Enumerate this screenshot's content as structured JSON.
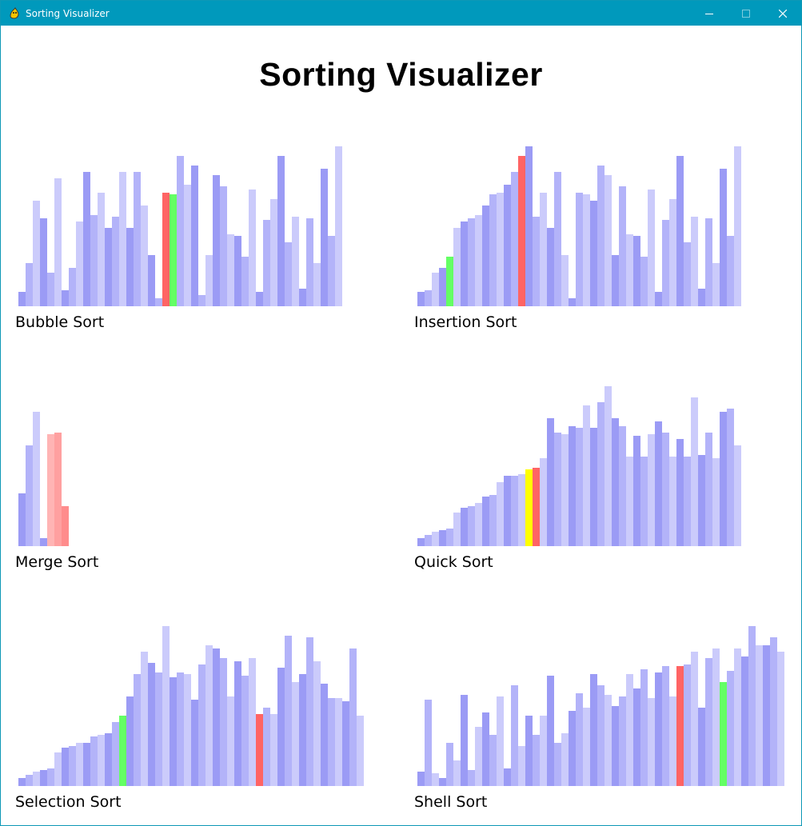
{
  "window": {
    "title": "Sorting Visualizer",
    "controls": [
      "minimize",
      "maximize",
      "close"
    ],
    "titlebar_color": "#0099bc"
  },
  "page": {
    "title": "Sorting Visualizer"
  },
  "colors": {
    "shades": [
      "#9b9bf5",
      "#b3b3f9",
      "#cbcbfb"
    ],
    "compare": "#ff6464",
    "active": "#64ff64",
    "pivot": "#ffff00",
    "merge_light": "#ffb4b4",
    "merge_mid": "#ffa0a0",
    "merge_dark": "#ff8c8c"
  },
  "panels": [
    {
      "id": "bubble",
      "label": "Bubble Sort",
      "values": [
        18,
        54,
        132,
        110,
        42,
        160,
        20,
        48,
        106,
        168,
        114,
        142,
        98,
        112,
        168,
        98,
        168,
        126,
        64,
        10,
        142,
        140,
        188,
        152,
        176,
        14,
        64,
        164,
        150,
        90,
        88,
        62,
        146,
        18,
        108,
        134,
        188,
        80,
        112,
        22,
        110,
        54,
        172,
        88,
        200
      ],
      "highlights": {
        "21": "compare",
        "22": "active"
      }
    },
    {
      "id": "insertion",
      "label": "Insertion Sort",
      "values": [
        18,
        20,
        42,
        48,
        62,
        98,
        106,
        110,
        114,
        126,
        140,
        142,
        152,
        168,
        188,
        200,
        112,
        142,
        98,
        168,
        64,
        10,
        142,
        140,
        132,
        176,
        164,
        64,
        150,
        90,
        88,
        62,
        146,
        18,
        108,
        134,
        188,
        80,
        112,
        22,
        110,
        54,
        172,
        88,
        200
      ],
      "highlights": {
        "5": "active",
        "15": "compare"
      }
    },
    {
      "id": "merge",
      "label": "Merge Sort",
      "values": [
        66,
        126,
        168,
        10,
        140,
        142,
        50
      ],
      "highlights": {
        "5": "merge_light",
        "6": "merge_mid",
        "7": "merge_dark"
      }
    },
    {
      "id": "quick",
      "label": "Quick Sort",
      "values": [
        10,
        14,
        18,
        20,
        22,
        42,
        48,
        50,
        54,
        62,
        64,
        80,
        88,
        88,
        90,
        96,
        98,
        110,
        160,
        142,
        140,
        150,
        148,
        176,
        148,
        180,
        200,
        160,
        150,
        112,
        138,
        112,
        140,
        156,
        142,
        112,
        134,
        112,
        186,
        114,
        142,
        110,
        168,
        172,
        126
      ],
      "highlights": {
        "16": "pivot",
        "17": "compare"
      }
    },
    {
      "id": "selection",
      "label": "Selection Sort",
      "values": [
        10,
        14,
        18,
        20,
        22,
        42,
        48,
        50,
        54,
        54,
        62,
        64,
        66,
        80,
        88,
        112,
        140,
        168,
        154,
        142,
        200,
        136,
        142,
        140,
        108,
        152,
        176,
        172,
        160,
        112,
        156,
        138,
        160,
        90,
        98,
        90,
        148,
        188,
        130,
        140,
        186,
        156,
        128,
        110,
        110,
        106,
        172,
        88
      ],
      "highlights": {
        "15": "active",
        "34": "compare"
      }
    },
    {
      "id": "shell",
      "label": "Shell Sort",
      "values": [
        18,
        108,
        16,
        10,
        54,
        32,
        114,
        20,
        74,
        92,
        64,
        112,
        22,
        126,
        50,
        88,
        64,
        88,
        138,
        54,
        66,
        94,
        116,
        98,
        140,
        126,
        114,
        100,
        112,
        140,
        122,
        146,
        110,
        142,
        150,
        112,
        150,
        152,
        168,
        98,
        160,
        172,
        130,
        144,
        172,
        162,
        200,
        176,
        176,
        186,
        168
      ],
      "highlights": {
        "37": "compare",
        "43": "active"
      }
    }
  ]
}
